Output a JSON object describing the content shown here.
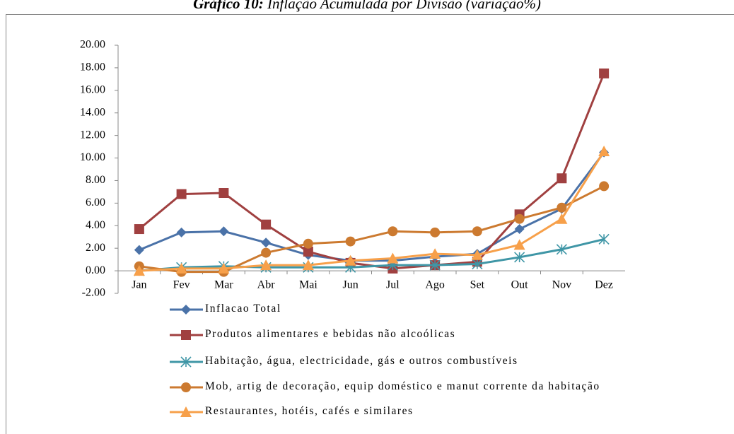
{
  "chart_data": {
    "type": "line",
    "title_label": "Gráfico 10:",
    "title": "Inflação Acumulada por Divisão (variação%)",
    "categories": [
      "Jan",
      "Fev",
      "Mar",
      "Abr",
      "Mai",
      "Jun",
      "Jul",
      "Ago",
      "Set",
      "Out",
      "Nov",
      "Dez"
    ],
    "ylim": [
      -2,
      20
    ],
    "yticks": [
      {
        "value": -2,
        "label": "-2.00"
      },
      {
        "value": 0,
        "label": "0.00"
      },
      {
        "value": 2,
        "label": "2.00"
      },
      {
        "value": 4,
        "label": "4.00"
      },
      {
        "value": 6,
        "label": "6.00"
      },
      {
        "value": 8,
        "label": "8.00"
      },
      {
        "value": 10,
        "label": "10.00"
      },
      {
        "value": 12,
        "label": "12.00"
      },
      {
        "value": 14,
        "label": "14.00"
      },
      {
        "value": 16,
        "label": "16.00"
      },
      {
        "value": 18,
        "label": "18.00"
      },
      {
        "value": 20,
        "label": "20.00"
      }
    ],
    "series": [
      {
        "name": "Inflacao Total",
        "color": "#4a72a8",
        "marker": "diamond",
        "values": [
          1.85,
          3.4,
          3.5,
          2.5,
          1.4,
          0.9,
          0.9,
          1.25,
          1.5,
          3.7,
          5.5,
          10.5
        ]
      },
      {
        "name": "Produtos alimentares e bebidas não alcoólicas",
        "color": "#a04040",
        "marker": "square",
        "values": [
          3.7,
          6.8,
          6.9,
          4.1,
          1.7,
          0.7,
          0.2,
          0.5,
          0.8,
          5.0,
          8.2,
          17.5
        ]
      },
      {
        "name": "Habitação, água, electricidade, gás e outros combustíveis",
        "color": "#3f96a6",
        "marker": "star",
        "values": [
          0.0,
          0.3,
          0.4,
          0.3,
          0.3,
          0.3,
          0.5,
          0.5,
          0.6,
          1.2,
          1.9,
          2.8
        ]
      },
      {
        "name": "Mob, artig de decoração, equip doméstico e manut corrente da habitação",
        "color": "#cc7a30",
        "marker": "circle",
        "values": [
          0.4,
          -0.1,
          -0.1,
          1.6,
          2.4,
          2.6,
          3.5,
          3.4,
          3.5,
          4.6,
          5.6,
          7.5
        ]
      },
      {
        "name": "Restaurantes, hotéis, cafés e similares",
        "color": "#f7a04a",
        "marker": "triangle",
        "values": [
          0.0,
          0.2,
          0.2,
          0.5,
          0.5,
          0.9,
          1.1,
          1.5,
          1.4,
          2.3,
          4.6,
          10.6
        ]
      }
    ]
  }
}
